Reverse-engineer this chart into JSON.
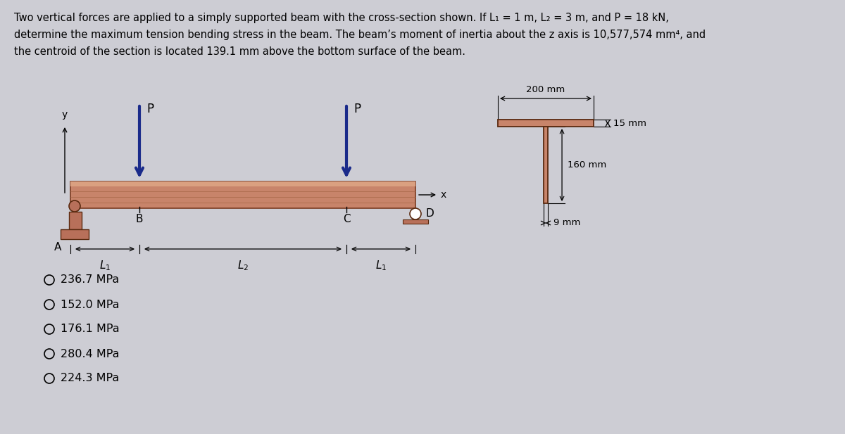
{
  "bg_color": "#cdcdd4",
  "text_color": "#000000",
  "beam_color": "#c8846a",
  "beam_highlight": "#daa080",
  "support_color": "#b8705a",
  "arrow_color": "#1a2a8a",
  "title_lines": [
    "Two vertical forces are applied to a simply supported beam with the cross-section shown. If L₁ = 1 m, L₂ = 3 m, and P = 18 kN,",
    "determine the maximum tension bending stress in the beam. The beam’s moment of inertia about the z axis is 10,577,574 mm⁴, and",
    "the centroid of the section is located 139.1 mm above the bottom surface of the beam."
  ],
  "options": [
    "236.7 MPa",
    "152.0 MPa",
    "176.1 MPa",
    "280.4 MPa",
    "224.3 MPa"
  ],
  "title_fontsize": 10.5,
  "option_fontsize": 11.5
}
